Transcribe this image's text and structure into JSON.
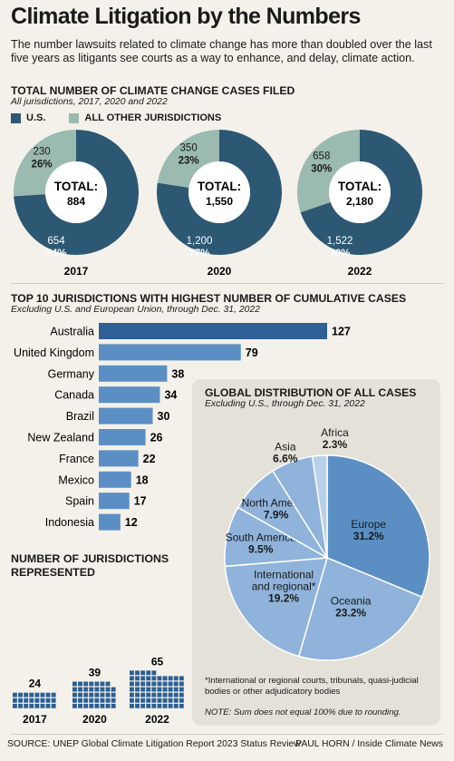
{
  "header": {
    "title": "Climate Litigation by the Numbers",
    "intro": "The number lawsuits related to climate change has more than doubled over the last five years as litigants see courts as a way to enhance, and delay, climate action."
  },
  "colors": {
    "us": "#2c5873",
    "other": "#9bbab0",
    "bar": "#5b8fc4",
    "bar_top": "#2f5f94",
    "pie_main": "#5b8fc4",
    "pie_light": "#8fb3da",
    "pie_pale": "#b9d0ea",
    "blocks": "#2c5f94",
    "background": "#f4f1ea",
    "panel": "#e4e1d8"
  },
  "donuts_section": {
    "title": "TOTAL NUMBER OF CLIMATE CHANGE CASES FILED",
    "subtitle": "All jurisdictions, 2017, 2020 and 2022",
    "legend": [
      {
        "label": "U.S.",
        "color": "#2c5873"
      },
      {
        "label": "ALL OTHER JURISDICTIONS",
        "color": "#9bbab0"
      }
    ]
  },
  "bars_section": {
    "title": "TOP 10 JURISDICTIONS WITH HIGHEST NUMBER OF CUMULATIVE CASES",
    "subtitle": "Excluding U.S. and European Union, through Dec. 31, 2022"
  },
  "pie_section": {
    "title": "GLOBAL DISTRIBUTION OF ALL CASES",
    "subtitle": "Excluding U.S., through Dec. 31, 2022",
    "footnote": "*International or regional courts, tribunals, quasi-judicial bodies or other adjudicatory bodies",
    "note": "NOTE: Sum does not equal 100% due to rounding."
  },
  "blocks_section": {
    "title_line1": "NUMBER OF JURISDICTIONS",
    "title_line2": "REPRESENTED"
  },
  "footer": {
    "source": "SOURCE: UNEP Global Climate Litigation Report 2023 Status Review",
    "credit": "PAUL HORN / Inside Climate News"
  },
  "chart_data": [
    {
      "type": "pie",
      "chart": "donut",
      "year": "2017",
      "total_label": "TOTAL:",
      "total": "884",
      "slices": [
        {
          "series": "U.S.",
          "value": 654,
          "value_label": "654",
          "pct_label": "74%"
        },
        {
          "series": "ALL OTHER JURISDICTIONS",
          "value": 230,
          "value_label": "230",
          "pct_label": "26%"
        }
      ]
    },
    {
      "type": "pie",
      "chart": "donut",
      "year": "2020",
      "total_label": "TOTAL:",
      "total": "1,550",
      "slices": [
        {
          "series": "U.S.",
          "value": 1200,
          "value_label": "1,200",
          "pct_label": "77%"
        },
        {
          "series": "ALL OTHER JURISDICTIONS",
          "value": 350,
          "value_label": "350",
          "pct_label": "23%"
        }
      ]
    },
    {
      "type": "pie",
      "chart": "donut",
      "year": "2022",
      "total_label": "TOTAL:",
      "total": "2,180",
      "slices": [
        {
          "series": "U.S.",
          "value": 1522,
          "value_label": "1,522",
          "pct_label": "70%"
        },
        {
          "series": "ALL OTHER JURISDICTIONS",
          "value": 658,
          "value_label": "658",
          "pct_label": "30%"
        }
      ]
    },
    {
      "type": "bar",
      "orientation": "horizontal",
      "categories": [
        "Australia",
        "United Kingdom",
        "Germany",
        "Canada",
        "Brazil",
        "New Zealand",
        "France",
        "Mexico",
        "Spain",
        "Indonesia"
      ],
      "values": [
        127,
        79,
        38,
        34,
        30,
        26,
        22,
        18,
        17,
        12
      ],
      "xlim": [
        0,
        127
      ]
    },
    {
      "type": "pie",
      "slices": [
        {
          "name": "Europe",
          "value": 31.2,
          "label": "31.2%"
        },
        {
          "name": "Oceania",
          "value": 23.2,
          "label": "23.2%"
        },
        {
          "name": "International and regional*",
          "name_lines": [
            "International",
            "and regional*"
          ],
          "value": 19.2,
          "label": "19.2%"
        },
        {
          "name": "South America",
          "value": 9.5,
          "label": "9.5%"
        },
        {
          "name": "North America",
          "value": 7.9,
          "label": "7.9%"
        },
        {
          "name": "Asia",
          "value": 6.6,
          "label": "6.6%"
        },
        {
          "name": "Africa",
          "value": 2.3,
          "label": "2.3%"
        }
      ]
    },
    {
      "type": "bar",
      "chart": "unit-blocks",
      "categories": [
        "2017",
        "2020",
        "2022"
      ],
      "values": [
        24,
        39,
        65
      ]
    }
  ]
}
